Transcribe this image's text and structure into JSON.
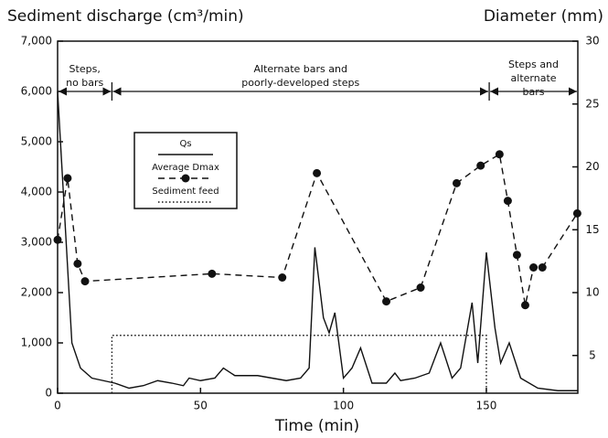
{
  "chart_data": {
    "type": "line",
    "title": "Sediment discharge (cm³/min)",
    "y2_title": "Diameter (mm)",
    "x_label": "Time (min)",
    "xlim": [
      0,
      182
    ],
    "xticks": [
      0,
      50,
      100,
      150
    ],
    "ylim": [
      0,
      7000
    ],
    "yticks": [
      0,
      {
        "value": 1000,
        "label": "1,000"
      },
      {
        "value": 2000,
        "label": "2,000"
      },
      {
        "value": 3000,
        "label": "3,000"
      },
      {
        "value": 4000,
        "label": "4,000"
      },
      {
        "value": 5000,
        "label": "5,000"
      },
      {
        "value": 6000,
        "label": "6,000"
      },
      {
        "value": 7000,
        "label": "7,000"
      }
    ],
    "y2lim": [
      2,
      30
    ],
    "y2ticks": [
      5,
      10,
      15,
      20,
      25,
      30
    ],
    "legend": "upper left",
    "series": [
      {
        "name": "Qs",
        "color": "#111111",
        "dash": "solid",
        "marker": false,
        "x": [
          0,
          1,
          3,
          5,
          8,
          12,
          20,
          25,
          30,
          35,
          40,
          44,
          46,
          50,
          55,
          58,
          62,
          70,
          75,
          80,
          85,
          88,
          90,
          93,
          95,
          97,
          100,
          103,
          106,
          110,
          115,
          118,
          120,
          125,
          130,
          134,
          138,
          141,
          145,
          147,
          150,
          153,
          155,
          158,
          162,
          168,
          175,
          182
        ],
        "values": [
          6000,
          5000,
          3000,
          1000,
          500,
          300,
          200,
          100,
          150,
          250,
          200,
          150,
          300,
          250,
          300,
          500,
          350,
          350,
          300,
          250,
          300,
          500,
          2900,
          1500,
          1200,
          1600,
          300,
          500,
          900,
          200,
          200,
          400,
          250,
          300,
          400,
          1000,
          300,
          500,
          1800,
          600,
          2800,
          1300,
          600,
          1000,
          300,
          100,
          50,
          50
        ]
      },
      {
        "name": "Average Dmax",
        "color": "#111111",
        "dash": "dashed",
        "marker": true,
        "axis": "y2",
        "x": [
          0,
          3.5,
          7,
          9.6,
          54,
          78.6,
          90.7,
          115,
          127,
          139.6,
          148,
          154.6,
          157.5,
          160.7,
          163.6,
          166.5,
          169.6,
          181.8
        ],
        "values": [
          14.2,
          19.1,
          12.3,
          10.9,
          11.5,
          11.2,
          19.5,
          9.3,
          10.4,
          18.7,
          20.1,
          21,
          17.3,
          13,
          9,
          12,
          12,
          16.3
        ]
      },
      {
        "name": "Sediment feed",
        "color": "#111111",
        "dash": "dotted",
        "marker": false,
        "x": [
          19,
          19,
          150,
          150
        ],
        "values": [
          0,
          1150,
          1150,
          0
        ]
      }
    ],
    "regions": [
      {
        "label": [
          "Steps,",
          "no bars"
        ],
        "x": [
          0,
          19
        ]
      },
      {
        "label": [
          "Alternate bars and",
          "poorly-developed steps"
        ],
        "x": [
          19,
          151
        ]
      },
      {
        "label": [
          "Steps and",
          "alternate",
          "bars"
        ],
        "x": [
          151,
          182
        ]
      }
    ]
  }
}
